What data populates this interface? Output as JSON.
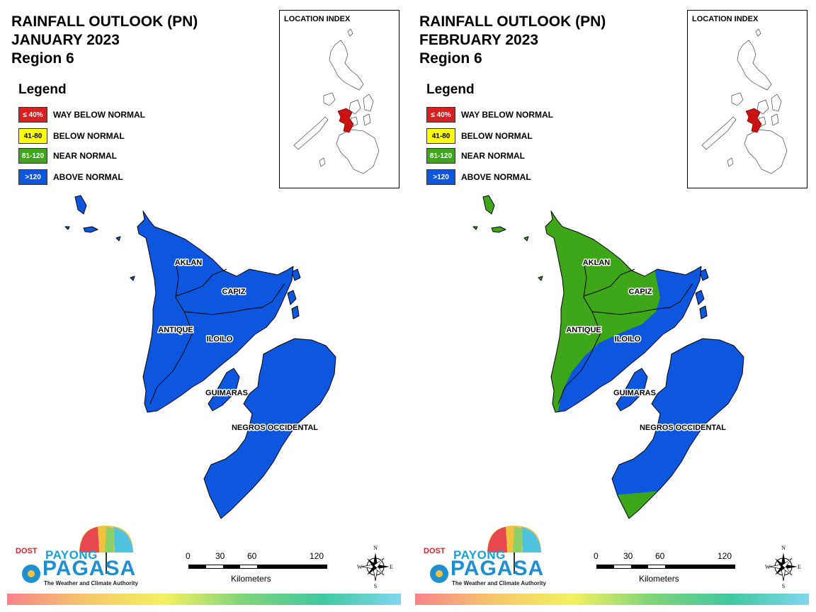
{
  "panels": [
    {
      "title": [
        "RAINFALL OUTLOOK (PN)",
        "JANUARY 2023",
        "Region 6"
      ],
      "coverage": [
        {
          "province": "ALL",
          "category": ">120"
        }
      ]
    },
    {
      "title": [
        "RAINFALL OUTLOOK (PN)",
        "FEBRUARY 2023",
        "Region 6"
      ],
      "coverage": [
        {
          "province": "AKLAN",
          "category": "81-120"
        },
        {
          "province": "CAPIZ",
          "category": "81-120 (west), >120 (east)"
        },
        {
          "province": "ANTIQUE",
          "category": "81-120"
        },
        {
          "province": "ILOILO",
          "category": ">120"
        },
        {
          "province": "GUIMARAS",
          "category": ">120"
        },
        {
          "province": "NEGROS OCCIDENTAL",
          "category": ">120 (north), 81-120 (south tip)"
        }
      ]
    }
  ],
  "legend": {
    "title": "Legend",
    "items": [
      {
        "range": "≤ 40%",
        "label": "WAY BELOW NORMAL",
        "color": "#d91f1f",
        "text_color": "#ffffff"
      },
      {
        "range": "41-80",
        "label": "BELOW NORMAL",
        "color": "#ffff00",
        "text_color": "#000000"
      },
      {
        "range": "81-120",
        "label": "NEAR NORMAL",
        "color": "#3ea619",
        "text_color": "#ffffff"
      },
      {
        "range": ">120",
        "label": "ABOVE NORMAL",
        "color": "#0d57e0",
        "text_color": "#ffffff"
      }
    ]
  },
  "location_index": {
    "title": "LOCATION INDEX",
    "highlight_color": "#cc1111"
  },
  "province_labels": {
    "aklan": "AKLAN",
    "capiz": "CAPIZ",
    "antique": "ANTIQUE",
    "iloilo": "ILOILO",
    "guimaras": "GUIMARAS",
    "negros": "NEGROS OCCIDENTAL"
  },
  "scale": {
    "ticks": [
      "0",
      "30",
      "60",
      "120"
    ],
    "unit": "Kilometers"
  },
  "compass": {
    "n": "N",
    "s": "S",
    "e": "E",
    "w": "W"
  },
  "logo": {
    "dost": "DOST",
    "payong": "PAYONG",
    "pagasa": "PAGASA",
    "tagline": "The Weather and Climate Authority"
  },
  "colors": {
    "above_normal": "#0d57e0",
    "near_normal": "#3ea619",
    "boundary": "#000000"
  }
}
